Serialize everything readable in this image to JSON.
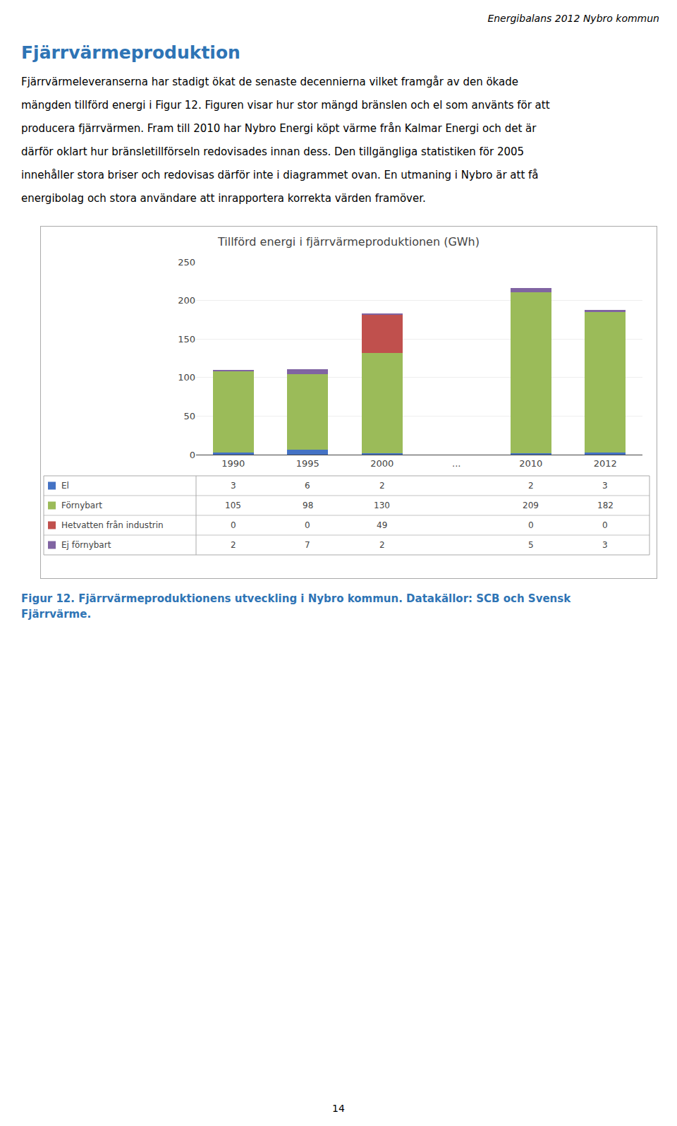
{
  "header": "Energibalans 2012 Nybro kommun",
  "section_title": "Fjärrvärmeproduktion",
  "section_title_color": "#2E74B5",
  "body_lines": [
    "Fjärrvärmele­veranserna har stadigt ökat de senaste decennierna vilket framgår av den ökade",
    "mängden tillförd energi i Figur 12. Figuren visar hur stor mängd bränslen och el som använts för att",
    "producera fjärrvärmen. Fram till 2010 har Nybro Energi köpt värme från Kalmar Energi och det är",
    "därför oklart hur bränsletillförseln redovisades innan dess. Den tillgängliga statistiken för 2005",
    "innehåller stora briser och redovisas därför inte i diagrammet ovan. En utmaning i Nybro är att få",
    "energibolag och stora användare att inrapportera korrekta värden framöver."
  ],
  "caption_lines": [
    "Figur 12. Fjärrvärmeproduktionens utveckling i Nybro kommun. Datakällor: SCB och Svensk",
    "Fjärrvärme."
  ],
  "caption_color": "#2E74B5",
  "page_number": "14",
  "chart_data": {
    "type": "bar",
    "stacked": true,
    "title": "Tillförd energi i fjärrvärmeproduktionen (GWh)",
    "categories": [
      "1990",
      "1995",
      "2000",
      "...",
      "2010",
      "2012"
    ],
    "series": [
      {
        "name": "El",
        "color": "#4472C4",
        "values": [
          3,
          6,
          2,
          0,
          2,
          3
        ],
        "value_labels": [
          "3",
          "6",
          "2",
          null,
          "2",
          "3"
        ]
      },
      {
        "name": "Förnybart",
        "color": "#9BBB59",
        "values": [
          105,
          98,
          130,
          0,
          209,
          182
        ],
        "value_labels": [
          "105",
          "98",
          "130",
          null,
          "209",
          "182"
        ]
      },
      {
        "name": "Hetvatten från industrin",
        "color": "#C0504D",
        "values": [
          0,
          0,
          49,
          0,
          0,
          0
        ],
        "value_labels": [
          "0",
          "0",
          "49",
          null,
          "0",
          "0"
        ]
      },
      {
        "name": "Ej förnybart",
        "color": "#8064A2",
        "values": [
          2,
          7,
          2,
          0,
          5,
          3
        ],
        "value_labels": [
          "2",
          "7",
          "2",
          null,
          "5",
          "3"
        ]
      }
    ],
    "ylim": [
      0,
      250
    ],
    "yticks": [
      0,
      50,
      100,
      150,
      200,
      250
    ],
    "grid": true,
    "data_labels": true
  }
}
